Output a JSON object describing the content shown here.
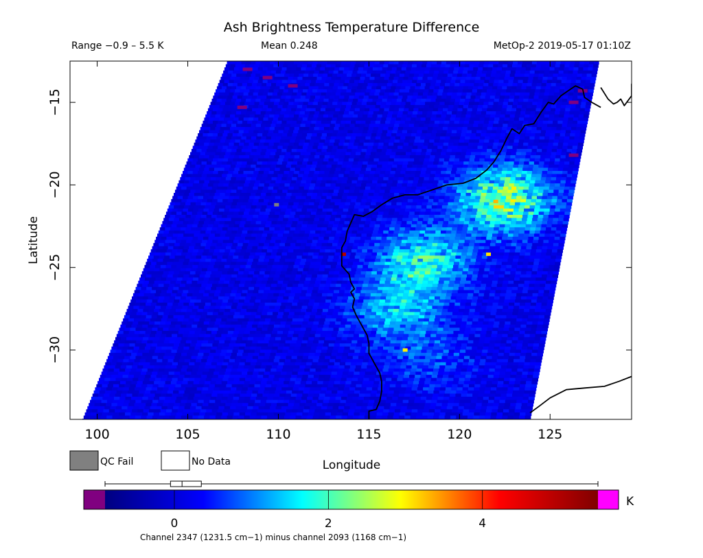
{
  "chart_data": {
    "type": "heatmap",
    "title": "Ash Brightness Temperature Difference",
    "subtitle_left": "Range −0.9 – 5.5 K",
    "subtitle_center": "Mean 0.248",
    "subtitle_right": "MetOp-2 2019-05-17 01:10Z",
    "xlabel": "Longitude",
    "ylabel": "Latitude",
    "xlim": [
      98.5,
      129.5
    ],
    "ylim": [
      -34.2,
      -12.5
    ],
    "x_ticks": [
      {
        "value": 100,
        "label": "100"
      },
      {
        "value": 105,
        "label": "105"
      },
      {
        "value": 110,
        "label": "110"
      },
      {
        "value": 115,
        "label": "115"
      },
      {
        "value": 120,
        "label": "120"
      },
      {
        "value": 125,
        "label": "125"
      }
    ],
    "y_ticks": [
      {
        "value": -15,
        "label": "−15"
      },
      {
        "value": -20,
        "label": "−20"
      },
      {
        "value": -25,
        "label": "−25"
      },
      {
        "value": -30,
        "label": "−30"
      }
    ],
    "value_range": [
      -0.9,
      5.5
    ],
    "mean": 0.248,
    "units": "K",
    "legend": {
      "qc_fail_label": "QC Fail",
      "qc_fail_color": "#808080",
      "no_data_label": "No Data",
      "no_data_color": "#ffffff"
    },
    "colorbar": {
      "min": -0.9,
      "max": 5.5,
      "ticks": [
        {
          "value": 0,
          "label": "0"
        },
        {
          "value": 2,
          "label": "2"
        },
        {
          "value": 4,
          "label": "4"
        }
      ],
      "unit_label": "K",
      "under_color": "#800080",
      "over_color": "#ff00ff",
      "colors": [
        "#000080",
        "#0000ff",
        "#00ffff",
        "#ffff00",
        "#ff0000",
        "#800000"
      ],
      "boxplot": {
        "min": -0.9,
        "q1": -0.05,
        "median": 0.1,
        "q3": 0.35,
        "max": 5.5
      },
      "caption": "Channel 2347 (1231.5 cm−1) minus channel 2093 (1168 cm−1)"
    },
    "swath": {
      "corners": [
        [
          107.2,
          -12.5
        ],
        [
          127.7,
          -12.5
        ],
        [
          123.9,
          -34.2
        ],
        [
          99.2,
          -34.2
        ]
      ],
      "background_value": 0.15
    },
    "anomalies": [
      {
        "name": "elevated plume north-east",
        "lon": 122.5,
        "lat": -20.8,
        "value": 2.6
      },
      {
        "name": "elevated band central",
        "lon": 118.0,
        "lat": -24.5,
        "value": 1.9
      },
      {
        "name": "coastal elevated region",
        "lon": 116.5,
        "lat": -27.5,
        "value": 1.4
      },
      {
        "name": "south land region",
        "lon": 118.5,
        "lat": -30.5,
        "value": 0.7
      }
    ],
    "hot_pixels": [
      {
        "lon": 113.6,
        "lat": -24.2,
        "value": 5.0
      },
      {
        "lon": 117.0,
        "lat": -30.0,
        "value": 3.0
      },
      {
        "lon": 122.0,
        "lat": -21.0,
        "value": 3.3
      },
      {
        "lon": 121.6,
        "lat": -24.2,
        "value": 3.1
      },
      {
        "lon": 123.0,
        "lat": -20.2,
        "value": 3.0
      }
    ],
    "under_pixels": [
      {
        "lon": 108.3,
        "lat": -13.0
      },
      {
        "lon": 109.4,
        "lat": -13.5
      },
      {
        "lon": 110.8,
        "lat": -14.0
      },
      {
        "lon": 108.0,
        "lat": -15.3
      },
      {
        "lon": 126.3,
        "lat": -15.0
      },
      {
        "lon": 126.8,
        "lat": -14.3
      },
      {
        "lon": 126.3,
        "lat": -18.2
      }
    ],
    "qc_fail_pixels": [
      {
        "lon": 109.9,
        "lat": -21.2
      }
    ],
    "coastline": [
      [
        [
          127.8,
          -15.3
        ],
        [
          127.3,
          -15.0
        ],
        [
          126.9,
          -14.7
        ],
        [
          126.8,
          -14.2
        ],
        [
          126.4,
          -14.0
        ],
        [
          126.0,
          -14.3
        ],
        [
          125.6,
          -14.6
        ],
        [
          125.2,
          -15.1
        ],
        [
          124.9,
          -15.0
        ],
        [
          124.5,
          -15.6
        ],
        [
          124.1,
          -16.3
        ],
        [
          123.6,
          -16.4
        ],
        [
          123.3,
          -16.9
        ],
        [
          122.9,
          -16.6
        ],
        [
          122.6,
          -17.2
        ],
        [
          122.3,
          -17.9
        ],
        [
          121.9,
          -18.6
        ],
        [
          121.5,
          -19.1
        ],
        [
          120.9,
          -19.6
        ],
        [
          120.2,
          -19.9
        ],
        [
          119.3,
          -20.0
        ],
        [
          118.5,
          -20.3
        ],
        [
          117.7,
          -20.6
        ],
        [
          117.0,
          -20.6
        ],
        [
          116.3,
          -20.8
        ],
        [
          115.7,
          -21.2
        ],
        [
          115.2,
          -21.6
        ],
        [
          114.7,
          -21.9
        ],
        [
          114.2,
          -21.8
        ],
        [
          114.0,
          -22.3
        ],
        [
          113.8,
          -22.8
        ],
        [
          113.7,
          -23.4
        ],
        [
          113.5,
          -23.8
        ],
        [
          113.5,
          -24.4
        ],
        [
          113.5,
          -24.9
        ],
        [
          113.9,
          -25.4
        ],
        [
          114.0,
          -25.9
        ],
        [
          114.2,
          -26.3
        ],
        [
          114.0,
          -26.5
        ],
        [
          114.2,
          -26.9
        ],
        [
          114.1,
          -27.4
        ],
        [
          114.3,
          -27.9
        ],
        [
          114.6,
          -28.5
        ],
        [
          114.9,
          -29.1
        ],
        [
          115.0,
          -29.6
        ],
        [
          115.0,
          -30.2
        ],
        [
          115.3,
          -30.8
        ],
        [
          115.6,
          -31.4
        ],
        [
          115.7,
          -31.9
        ],
        [
          115.7,
          -32.5
        ],
        [
          115.6,
          -33.1
        ],
        [
          115.4,
          -33.6
        ],
        [
          115.0,
          -33.7
        ],
        [
          115.0,
          -34.2
        ]
      ],
      [
        [
          123.9,
          -33.8
        ],
        [
          124.4,
          -33.4
        ],
        [
          125.0,
          -32.9
        ],
        [
          125.9,
          -32.4
        ],
        [
          126.9,
          -32.3
        ],
        [
          128.0,
          -32.2
        ],
        [
          128.8,
          -31.9
        ],
        [
          129.5,
          -31.6
        ]
      ],
      [
        [
          127.8,
          -14.1
        ],
        [
          128.2,
          -14.8
        ],
        [
          128.5,
          -15.1
        ],
        [
          128.7,
          -15.0
        ],
        [
          128.9,
          -14.8
        ],
        [
          129.1,
          -15.2
        ],
        [
          129.3,
          -14.9
        ],
        [
          129.5,
          -14.6
        ],
        [
          129.5,
          -13.9
        ],
        [
          129.7,
          -13.3
        ],
        [
          129.9,
          -12.9
        ]
      ]
    ]
  }
}
